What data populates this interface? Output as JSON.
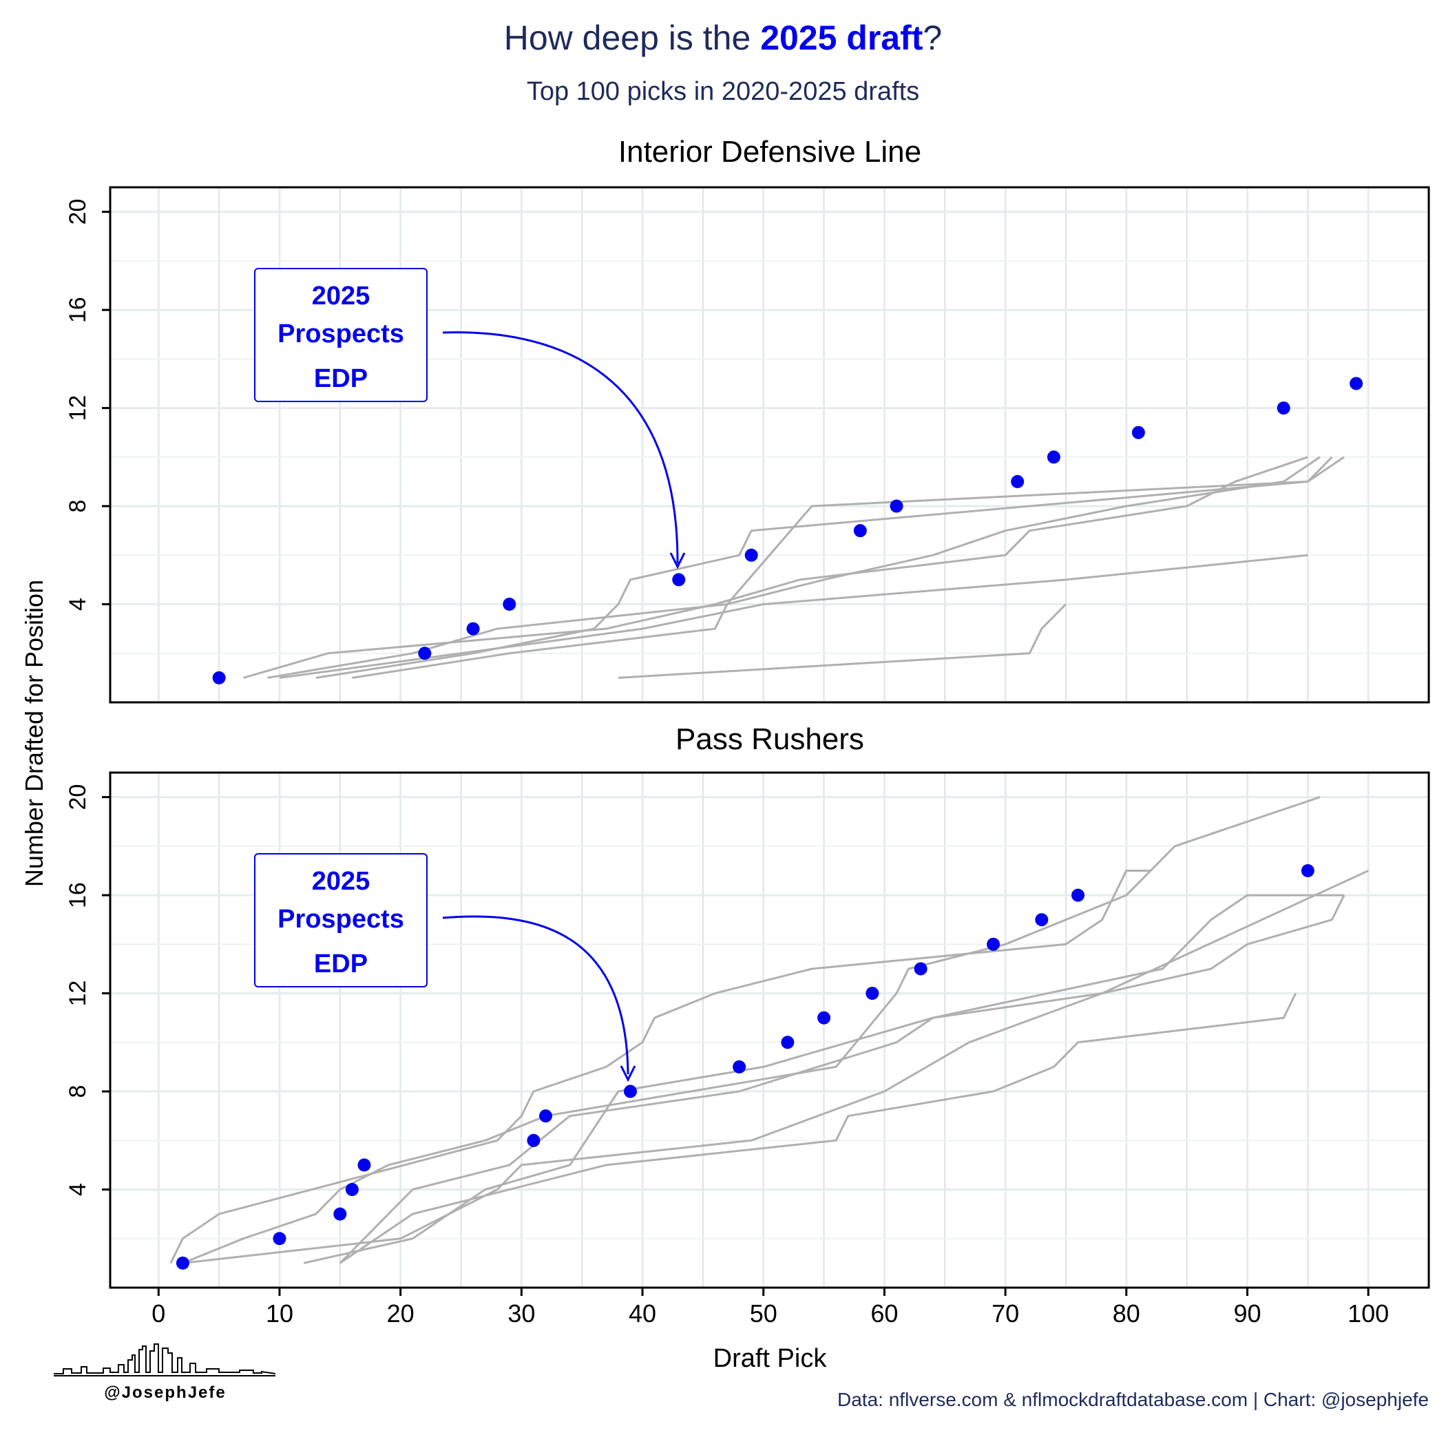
{
  "header": {
    "title_prefix": "How deep is the ",
    "title_highlight": "2025 draft",
    "title_suffix": "?",
    "subtitle": "Top 100 picks in 2020-2025 drafts"
  },
  "colors": {
    "title": "#1f2a5a",
    "highlight": "#0000ee",
    "historical_line": "#b0b0b0",
    "prospect_point": "#0000ee",
    "grid": "#e8eef0"
  },
  "annotation": {
    "line1": "2025",
    "line2": "Prospects",
    "line3": "EDP"
  },
  "footer": {
    "credit": "Data: nflverse.com & nflmockdraftdatabase.com | Chart: @josephjefe",
    "logo_text": "@JosephJefe"
  },
  "chart_data": {
    "type": "line",
    "xlabel": "Draft Pick",
    "ylabel": "Number Drafted for Position",
    "xlim": [
      -4,
      105
    ],
    "x_ticks": [
      0,
      10,
      20,
      30,
      40,
      50,
      60,
      70,
      80,
      90,
      100
    ],
    "grid": true,
    "panels": [
      {
        "title": "Interior Defensive Line",
        "ylim": [
          0,
          21
        ],
        "y_ticks": [
          4,
          8,
          12,
          16,
          20
        ],
        "series": [
          {
            "points": [
              [
                7,
                1
              ],
              [
                14,
                2
              ],
              [
                37,
                3
              ],
              [
                46,
                4
              ],
              [
                53,
                5
              ],
              [
                70,
                6
              ],
              [
                72,
                7
              ],
              [
                85,
                8
              ],
              [
                89,
                9
              ],
              [
                95,
                10
              ]
            ]
          },
          {
            "points": [
              [
                9,
                1
              ],
              [
                21,
                2
              ],
              [
                28,
                3
              ],
              [
                47,
                4
              ],
              [
                54,
                8
              ],
              [
                95,
                9
              ],
              [
                97,
                10
              ]
            ]
          },
          {
            "points": [
              [
                13,
                1
              ],
              [
                26,
                2
              ],
              [
                36,
                3
              ],
              [
                38,
                4
              ],
              [
                39,
                5
              ],
              [
                48,
                6
              ],
              [
                49,
                7
              ],
              [
                95,
                9
              ],
              [
                98,
                10
              ]
            ]
          },
          {
            "points": [
              [
                16,
                1
              ],
              [
                29,
                2
              ],
              [
                46,
                3
              ],
              [
                47,
                4
              ],
              [
                55,
                5
              ],
              [
                64,
                6
              ],
              [
                70,
                7
              ],
              [
                80,
                8
              ],
              [
                93,
                9
              ],
              [
                96,
                10
              ]
            ]
          },
          {
            "points": [
              [
                10,
                1
              ],
              [
                40,
                3
              ],
              [
                50,
                4
              ],
              [
                75,
                5
              ],
              [
                95,
                6
              ]
            ]
          },
          {
            "points": [
              [
                38,
                1
              ],
              [
                72,
                2
              ],
              [
                73,
                3
              ],
              [
                75,
                4
              ]
            ]
          }
        ],
        "prospects": {
          "x": [
            5,
            22,
            26,
            29,
            43,
            49,
            58,
            61,
            71,
            74,
            81,
            93,
            99
          ],
          "y": [
            1,
            2,
            3,
            4,
            5,
            6,
            7,
            8,
            9,
            10,
            11,
            12,
            13
          ]
        },
        "callout_target": [
          43,
          5
        ]
      },
      {
        "title": "Pass Rushers",
        "ylim": [
          0,
          21
        ],
        "y_ticks": [
          4,
          8,
          12,
          16,
          20
        ],
        "series": [
          {
            "points": [
              [
                1,
                1
              ],
              [
                2,
                2
              ],
              [
                5,
                3
              ],
              [
                28,
                6
              ],
              [
                30,
                7
              ],
              [
                31,
                8
              ],
              [
                37,
                9
              ],
              [
                40,
                10
              ],
              [
                41,
                11
              ],
              [
                46,
                12
              ],
              [
                54,
                13
              ],
              [
                75,
                14
              ],
              [
                78,
                15
              ],
              [
                80,
                17
              ],
              [
                82,
                17
              ]
            ]
          },
          {
            "points": [
              [
                2,
                1
              ],
              [
                7,
                2
              ],
              [
                13,
                3
              ],
              [
                15,
                4
              ],
              [
                19,
                5
              ],
              [
                27,
                6
              ],
              [
                32,
                7
              ],
              [
                44,
                8
              ],
              [
                56,
                9
              ],
              [
                61,
                12
              ],
              [
                62,
                13
              ],
              [
                70,
                14
              ],
              [
                80,
                16
              ],
              [
                84,
                18
              ],
              [
                96,
                20
              ]
            ]
          },
          {
            "points": [
              [
                12,
                1
              ],
              [
                21,
                2
              ],
              [
                27,
                4
              ],
              [
                34,
                5
              ],
              [
                38,
                8
              ],
              [
                50,
                9
              ],
              [
                57,
                10
              ],
              [
                64,
                11
              ],
              [
                78,
                12
              ],
              [
                100,
                17
              ]
            ]
          },
          {
            "points": [
              [
                15,
                1
              ],
              [
                21,
                4
              ],
              [
                29,
                5
              ],
              [
                34,
                7
              ],
              [
                48,
                8
              ],
              [
                61,
                10
              ],
              [
                64,
                11
              ],
              [
                83,
                13
              ],
              [
                87,
                15
              ],
              [
                90,
                16
              ],
              [
                97,
                16
              ],
              [
                98,
                16
              ]
            ]
          },
          {
            "points": [
              [
                2,
                1
              ],
              [
                20,
                2
              ],
              [
                24,
                3
              ],
              [
                28,
                4
              ],
              [
                30,
                5
              ],
              [
                49,
                6
              ],
              [
                60,
                8
              ],
              [
                67,
                10
              ],
              [
                78,
                12
              ],
              [
                87,
                13
              ],
              [
                90,
                14
              ],
              [
                97,
                15
              ],
              [
                98,
                16
              ]
            ]
          },
          {
            "points": [
              [
                15,
                1
              ],
              [
                21,
                3
              ],
              [
                37,
                5
              ],
              [
                56,
                6
              ],
              [
                57,
                7
              ],
              [
                69,
                8
              ],
              [
                74,
                9
              ],
              [
                76,
                10
              ],
              [
                93,
                11
              ],
              [
                94,
                12
              ]
            ]
          }
        ],
        "prospects": {
          "x": [
            2,
            10,
            15,
            16,
            17,
            31,
            32,
            39,
            48,
            52,
            55,
            59,
            63,
            69,
            73,
            76,
            95
          ],
          "y": [
            1,
            2,
            3,
            4,
            5,
            6,
            7,
            8,
            9,
            10,
            11,
            12,
            13,
            14,
            15,
            16,
            17
          ]
        },
        "callout_target": [
          39,
          8
        ]
      }
    ]
  }
}
